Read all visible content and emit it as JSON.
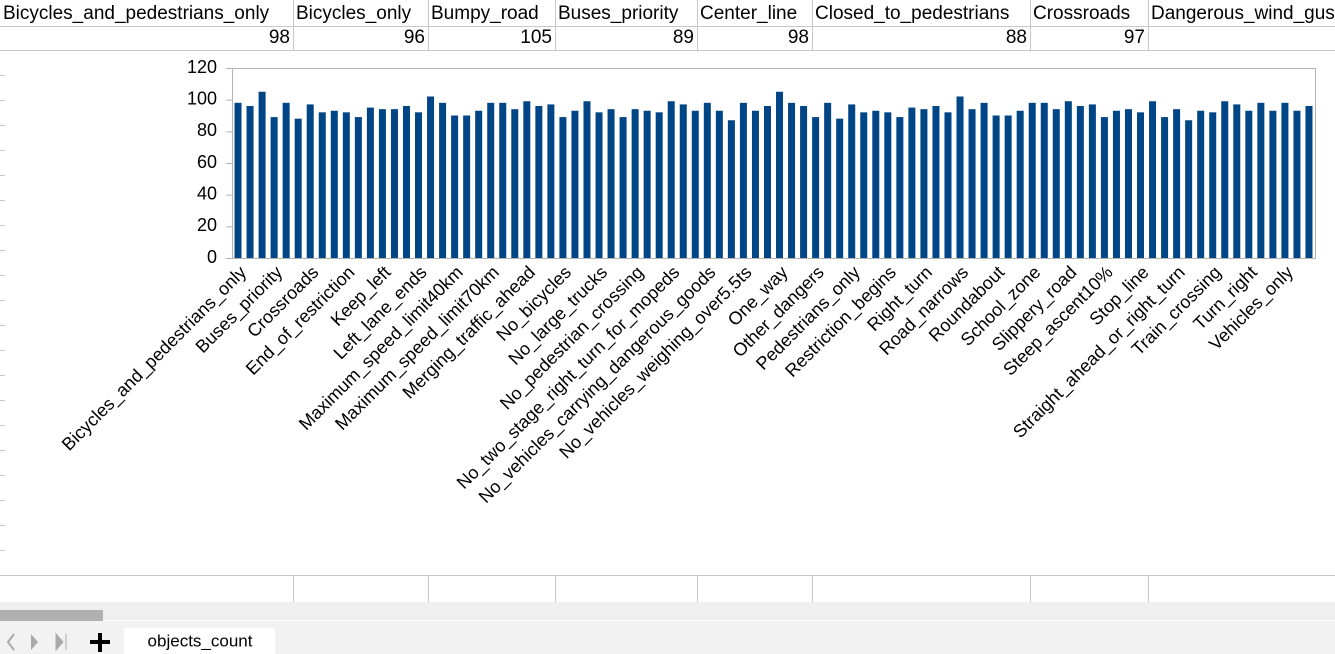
{
  "sheet": {
    "cells": [
      {
        "header": "Bicycles_and_pedestrians_only",
        "value": 98
      },
      {
        "header": "Bicycles_only",
        "value": 96
      },
      {
        "header": "Bumpy_road",
        "value": 105
      },
      {
        "header": "Buses_priority",
        "value": 89
      },
      {
        "header": "Center_line",
        "value": 98
      },
      {
        "header": "Closed_to_pedestrians",
        "value": 88
      },
      {
        "header": "Crossroads",
        "value": 97
      },
      {
        "header": "Dangerous_wind_gusts"
      }
    ]
  },
  "chart_data": {
    "type": "bar",
    "color": "#004586",
    "grid": false,
    "ylim": [
      0,
      120
    ],
    "yticks": [
      0,
      20,
      40,
      60,
      80,
      100,
      120
    ],
    "categories": [
      "Bicycles_and_pedestrians_only",
      null,
      null,
      "Buses_priority",
      null,
      null,
      "Crossroads",
      null,
      null,
      "End_of_restriction",
      null,
      null,
      "Keep_left",
      null,
      null,
      "Left_lane_ends",
      null,
      null,
      "Maximum_speed_limit40km",
      null,
      null,
      "Maximum_speed_limit70km",
      null,
      null,
      "Merging_traffic_ahead",
      null,
      null,
      "No_bicycles",
      null,
      null,
      "No_large_trucks",
      null,
      null,
      "No_pedestrian_crossing",
      null,
      null,
      "No_two_stage_right_turn_for_mopeds",
      null,
      null,
      "No_vehicles_carrying_dangerous_goods",
      null,
      null,
      "No_vehicles_weighing_over5.5ts",
      null,
      null,
      "One_way",
      null,
      null,
      "Other_dangers",
      null,
      null,
      "Pedestrians_only",
      null,
      null,
      "Restriction_begins",
      null,
      null,
      "Right_turn",
      null,
      null,
      "Road_narrows",
      null,
      null,
      "Roundabout",
      null,
      null,
      "School_zone",
      null,
      null,
      "Slippery_road",
      null,
      null,
      "Steep_ascent10%",
      null,
      null,
      "Stop_line",
      null,
      null,
      "Straight_ahead_or_right_turn",
      null,
      null,
      "Train_crossing",
      null,
      null,
      "Turn_right",
      null,
      null,
      "Vehicles_only",
      null,
      null
    ],
    "values": [
      98,
      96,
      105,
      89,
      98,
      88,
      97,
      92,
      93,
      92,
      89,
      95,
      94,
      94,
      96,
      92,
      102,
      98,
      90,
      90,
      93,
      98,
      98,
      94,
      99,
      96,
      97,
      89,
      93,
      99,
      92,
      94,
      89,
      94,
      93,
      92,
      99,
      97,
      93,
      98,
      93,
      87,
      98,
      93,
      96,
      105,
      98,
      96,
      89,
      98,
      88,
      97,
      92,
      93,
      92,
      89,
      95,
      94,
      96,
      92,
      102,
      94,
      98,
      90,
      90,
      93,
      98,
      98,
      94,
      99,
      96,
      97,
      89,
      93,
      94,
      92,
      99,
      89,
      94,
      87,
      93,
      92,
      99,
      97,
      93,
      98,
      93,
      98,
      93,
      96
    ]
  },
  "tabs": [
    "objects_count"
  ]
}
